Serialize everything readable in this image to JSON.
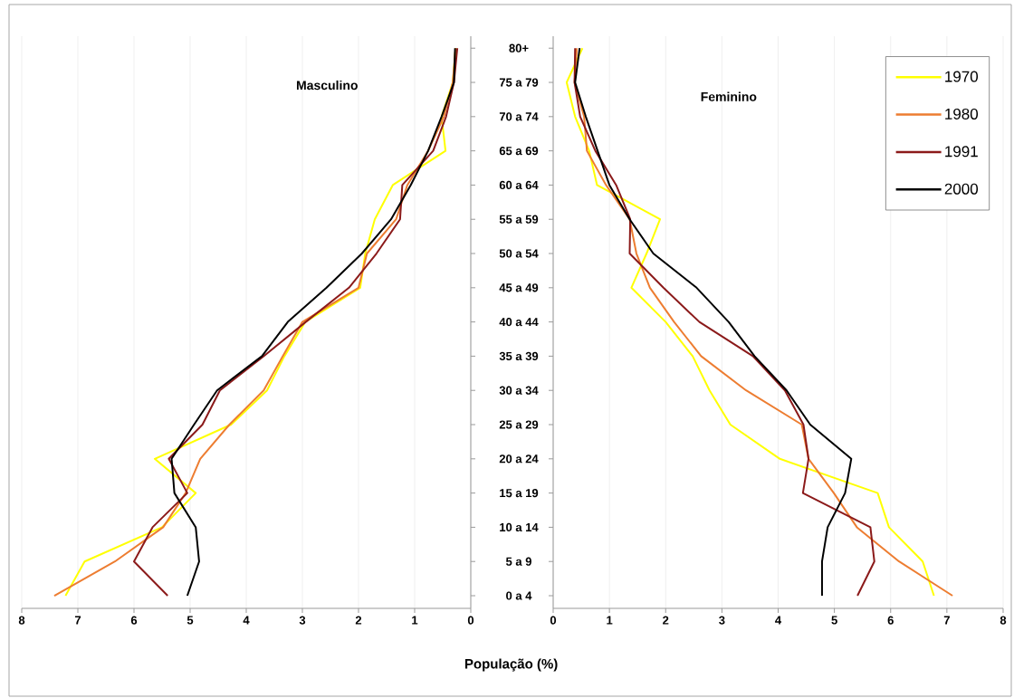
{
  "chart_data": [
    {
      "type": "line",
      "title": "Masculino",
      "xlabel": "População (%)",
      "orientation": "horizontal",
      "categories": [
        null,
        null,
        null,
        null,
        null,
        null,
        null,
        null,
        null,
        null,
        null,
        null,
        null,
        null,
        null,
        null,
        null
      ],
      "xlim": [
        8,
        0
      ],
      "xticks": [
        8,
        7,
        6,
        5,
        4,
        3,
        2,
        1,
        0
      ],
      "grid": "x",
      "tick_labels": "x",
      "series": [
        {
          "color": "#ffff00",
          "values": [
            0.27,
            0.32,
            0.52,
            0.45,
            1.39,
            1.71,
            1.88,
            1.97,
            2.95,
            3.32,
            3.63,
            4.27,
            5.63,
            4.9,
            5.5,
            6.88,
            7.22
          ]
        },
        {
          "color": "#ed7d31",
          "values": [
            0.27,
            0.32,
            0.48,
            0.76,
            1.13,
            1.33,
            1.85,
            2.0,
            3.0,
            3.35,
            3.69,
            4.3,
            4.82,
            5.08,
            5.48,
            6.34,
            7.42
          ]
        },
        {
          "color": "#8b1a1a",
          "values": [
            0.24,
            0.3,
            0.44,
            0.67,
            1.22,
            1.26,
            1.68,
            2.17,
            2.94,
            3.69,
            4.47,
            4.78,
            5.38,
            5.05,
            5.67,
            6.0,
            5.4
          ]
        },
        {
          "color": "#000000",
          "values": [
            0.28,
            0.3,
            0.52,
            0.76,
            1.07,
            1.42,
            1.94,
            2.57,
            3.26,
            3.72,
            4.52,
            4.93,
            5.33,
            5.28,
            4.9,
            4.84,
            5.05
          ]
        }
      ]
    },
    {
      "type": "line",
      "title": "Feminino",
      "orientation": "horizontal",
      "categories": [
        "80+",
        "75 a 79",
        "70 a 74",
        "65 a 69",
        "60 a 64",
        "55 a 59",
        "50 a 54",
        "45 a 49",
        "40 a 44",
        "35 a 39",
        "30 a 34",
        "25 a 29",
        "20 a 24",
        "15 a 19",
        "10 a 14",
        "5 a 9",
        "0 a 4"
      ],
      "xlim": [
        0,
        8
      ],
      "xticks": [
        0,
        1,
        2,
        3,
        4,
        5,
        6,
        7,
        8
      ],
      "grid": "x",
      "legend": "top right",
      "series": [
        {
          "name": "1970",
          "color": "#ffff00",
          "values": [
            0.52,
            0.24,
            0.39,
            0.64,
            0.78,
            1.9,
            1.66,
            1.39,
            2.0,
            2.48,
            2.78,
            3.15,
            4.03,
            5.77,
            5.97,
            6.57,
            6.77
          ]
        },
        {
          "name": "1980",
          "color": "#ed7d31",
          "values": [
            0.42,
            0.38,
            0.55,
            0.6,
            0.94,
            1.36,
            1.48,
            1.72,
            2.15,
            2.63,
            3.43,
            4.42,
            4.54,
            4.99,
            5.4,
            6.15,
            7.1
          ]
        },
        {
          "name": "1991",
          "color": "#8b1a1a",
          "values": [
            0.39,
            0.38,
            0.48,
            0.75,
            1.12,
            1.37,
            1.36,
            1.96,
            2.6,
            3.55,
            4.12,
            4.45,
            4.54,
            4.44,
            5.64,
            5.71,
            5.41
          ]
        },
        {
          "name": "2000",
          "color": "#000000",
          "values": [
            0.47,
            0.39,
            0.58,
            0.79,
            1.0,
            1.36,
            1.78,
            2.55,
            3.12,
            3.58,
            4.15,
            4.57,
            5.3,
            5.19,
            4.88,
            4.78,
            4.78
          ]
        }
      ]
    }
  ]
}
